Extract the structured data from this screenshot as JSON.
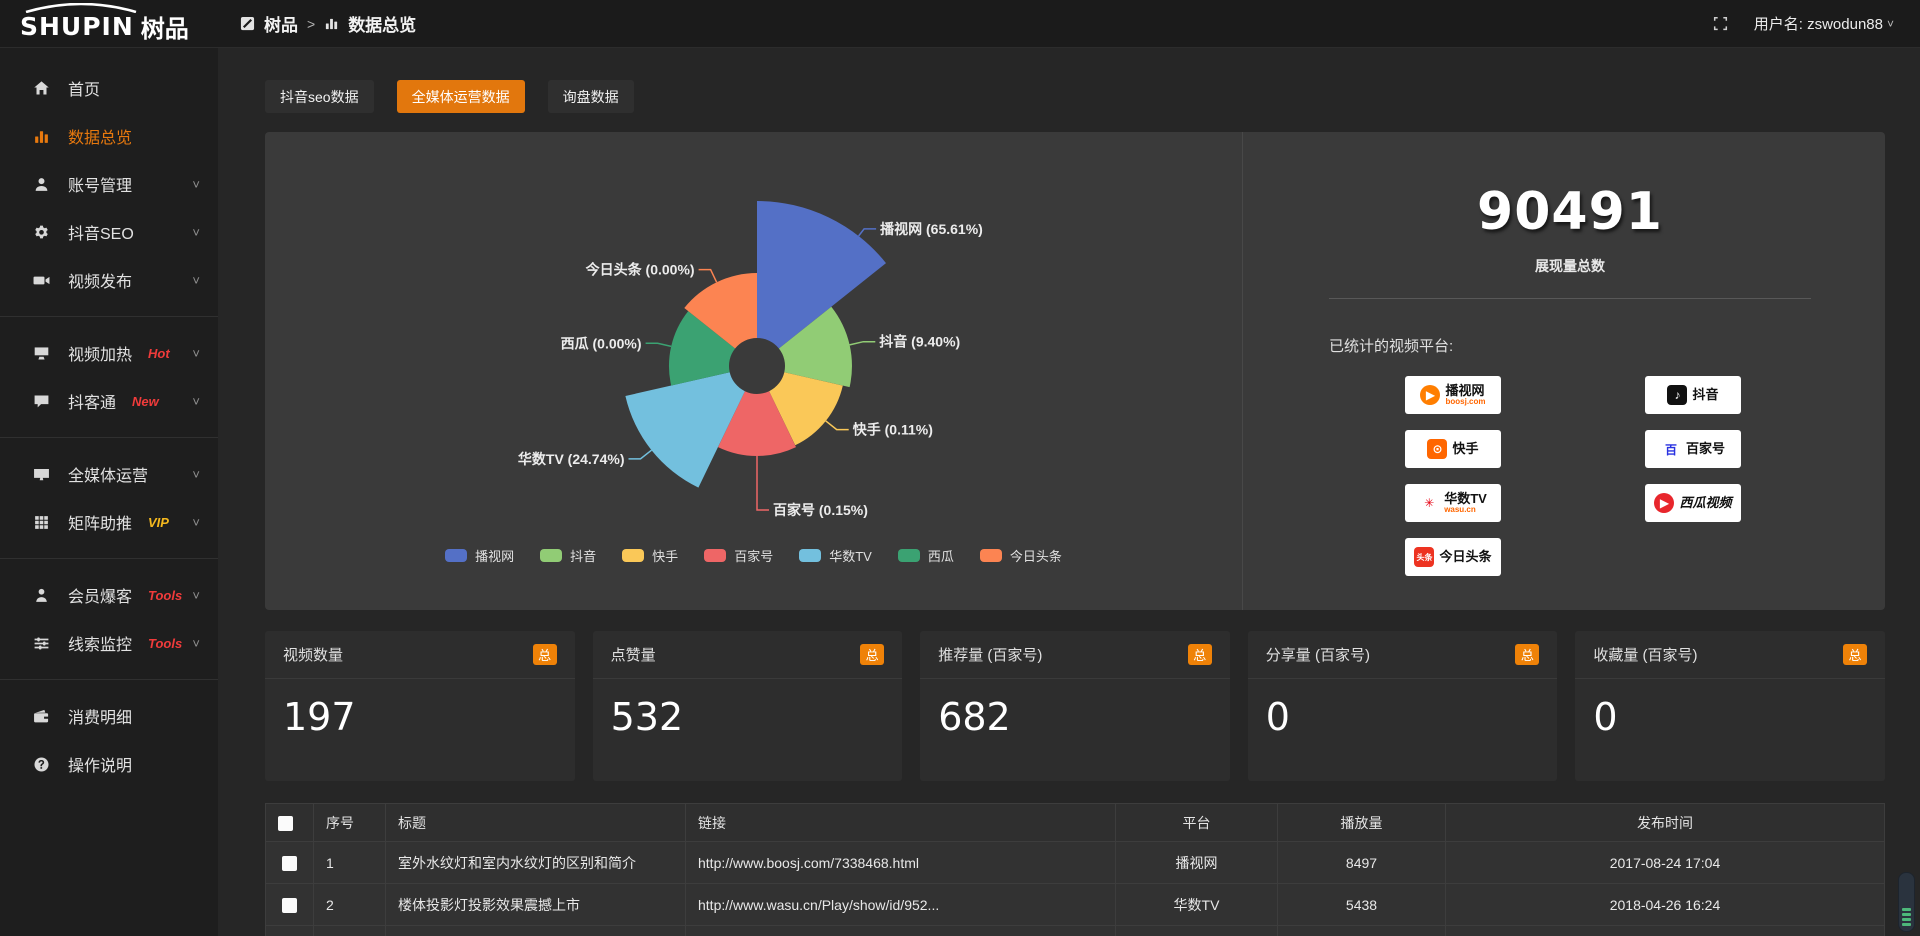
{
  "colors": {
    "accent": "#e8790e",
    "active_tab": "#e2770d",
    "badge_orange": "#ef8208",
    "link_orange": "#e0862a",
    "badge_red": "#f03b3b",
    "badge_gold": "#f5b91e",
    "panel_bg": "#3a3a3a",
    "card_bg": "#2d2d2d"
  },
  "topbar": {
    "logo_en": "SHUPIN",
    "logo_cn": "树品",
    "breadcrumb_root": "树品",
    "breadcrumb_sep": ">",
    "breadcrumb_current": "数据总览",
    "username": "用户名: zswodun88"
  },
  "sidebar": {
    "items": [
      {
        "label": "首页",
        "icon": "home-icon"
      },
      {
        "label": "数据总览",
        "icon": "chart-icon",
        "active": true
      },
      {
        "label": "账号管理",
        "icon": "user-icon",
        "chevron": true
      },
      {
        "label": "抖音SEO",
        "icon": "gear-icon",
        "chevron": true
      },
      {
        "label": "视频发布",
        "icon": "video-icon",
        "chevron": true,
        "divider_after": true
      },
      {
        "label": "视频加热",
        "icon": "heat-icon",
        "badge": "Hot",
        "badge_color": "#f03b3b",
        "chevron": true
      },
      {
        "label": "抖客通",
        "icon": "chat-icon",
        "badge": "New",
        "badge_color": "#f03b3b",
        "chevron": true,
        "divider_after": true
      },
      {
        "label": "全媒体运营",
        "icon": "monitor-icon",
        "chevron": true
      },
      {
        "label": "矩阵助推",
        "icon": "grid-icon",
        "badge": "VIP",
        "badge_color": "#f5b91e",
        "chevron": true,
        "divider_after": true
      },
      {
        "label": "会员爆客",
        "icon": "member-icon",
        "badge": "Tools",
        "badge_color": "#f03b3b",
        "chevron": true
      },
      {
        "label": "线索监控",
        "icon": "sliders-icon",
        "badge": "Tools",
        "badge_color": "#f03b3b",
        "chevron": true,
        "divider_after": true
      },
      {
        "label": "消费明细",
        "icon": "wallet-icon"
      },
      {
        "label": "操作说明",
        "icon": "question-icon"
      }
    ]
  },
  "tabs": [
    {
      "label": "抖音seo数据",
      "active": false
    },
    {
      "label": "全媒体运营数据",
      "active": true
    },
    {
      "label": "询盘数据",
      "active": false
    }
  ],
  "chart_data": {
    "type": "pie",
    "variant": "nightingale-rose",
    "labels": [
      "播视网",
      "抖音",
      "快手",
      "百家号",
      "华数TV",
      "西瓜",
      "今日头条"
    ],
    "values_percent": [
      65.61,
      9.4,
      0.11,
      0.15,
      24.74,
      0.0,
      0.0
    ],
    "label_template": "{name} ({value}%)",
    "colors": [
      "#5470c6",
      "#91cc75",
      "#fac858",
      "#ee6666",
      "#73c0de",
      "#3ba272",
      "#fc8452"
    ],
    "legend_position": "bottom",
    "legend": [
      "播视网",
      "抖音",
      "快手",
      "百家号",
      "华数TV",
      "西瓜",
      "今日头条"
    ]
  },
  "summary": {
    "total_value": "90491",
    "total_label": "展现量总数",
    "platforms_title": "已统计的视频平台:",
    "platforms": [
      {
        "label": "播视网",
        "sub": "boosj.com",
        "icon": "boosj-icon",
        "shape": "circle",
        "icon_bg": "#ff7e00",
        "icon_fg": "#ffffff",
        "glyph": "▶"
      },
      {
        "label": "抖音",
        "icon": "douyin-icon",
        "shape": "rounded",
        "icon_bg": "#111111",
        "icon_fg": "#ffffff",
        "glyph": "♪"
      },
      {
        "label": "快手",
        "icon": "kuaishou-icon",
        "shape": "rounded",
        "icon_bg": "#ff6600",
        "icon_fg": "#ffffff",
        "glyph": "⊙"
      },
      {
        "label": "百家号",
        "icon": "baijiahao-icon",
        "shape": "plain",
        "icon_bg": "#ffffff",
        "icon_fg": "#2932e1",
        "glyph": "百"
      },
      {
        "label": "华数TV",
        "sub": "wasu.cn",
        "icon": "wasu-icon",
        "shape": "plain",
        "icon_bg": "#ffffff",
        "icon_fg": "#e60012",
        "glyph": "✳"
      },
      {
        "label": "西瓜视频",
        "icon": "xigua-icon",
        "shape": "circle",
        "icon_bg": "#e8262c",
        "icon_fg": "#ffffff",
        "glyph": "▶",
        "italic": true
      },
      {
        "label": "今日头条",
        "icon": "toutiao-icon",
        "shape": "rounded",
        "icon_bg": "#ed3321",
        "icon_fg": "#ffffff",
        "glyph": "头条"
      }
    ]
  },
  "stat_cards": [
    {
      "label": "视频数量",
      "badge": "总",
      "value": "197"
    },
    {
      "label": "点赞量",
      "badge": "总",
      "value": "532"
    },
    {
      "label": "推荐量 (百家号)",
      "badge": "总",
      "value": "682"
    },
    {
      "label": "分享量 (百家号)",
      "badge": "总",
      "value": "0"
    },
    {
      "label": "收藏量 (百家号)",
      "badge": "总",
      "value": "0"
    }
  ],
  "table": {
    "headers": [
      "序号",
      "标题",
      "链接",
      "平台",
      "播放量",
      "发布时间"
    ],
    "rows": [
      {
        "index": "1",
        "title": "室外水纹灯和室内水纹灯的区别和简介",
        "link": "http://www.boosj.com/7338468.html",
        "platform": "播视网",
        "plays": "8497",
        "published": "2017-08-24 17:04"
      },
      {
        "index": "2",
        "title": "楼体投影灯投影效果震撼上市",
        "link": "http://www.wasu.cn/Play/show/id/952...",
        "platform": "华数TV",
        "plays": "5438",
        "published": "2018-04-26 16:24"
      }
    ]
  }
}
